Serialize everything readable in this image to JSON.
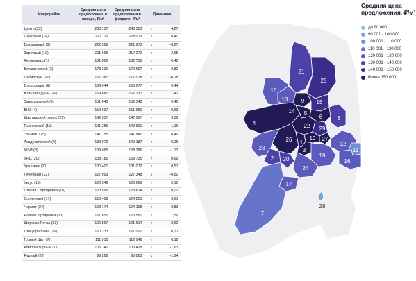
{
  "table": {
    "headers": [
      "Микрорайон",
      "Средняя цена предложения в январе, ₽/м²",
      "Средняя цена предложения в феврале, ₽/м²",
      "Динамика"
    ],
    "rows": [
      [
        "Центр (22)",
        "238 137",
        "248 303",
        "↑",
        "4,27"
      ],
      [
        "Парковый (14)",
        "227 112",
        "228 023",
        "↑",
        "0,40"
      ],
      [
        "Вокзальный (5)",
        "222 568",
        "221 973",
        "↓",
        "-0,27"
      ],
      [
        "Заречный (10)",
        "211 666",
        "217 270",
        "↑",
        "2,65"
      ],
      [
        "Автовокзал (1)",
        "181 860",
        "182 736",
        "↑",
        "0,48"
      ],
      [
        "Ботанический (3)",
        "178 231",
        "179 697",
        "↑",
        "0,82"
      ],
      [
        "Сибирский (27)",
        "171 387",
        "171 078",
        "↓",
        "-0,18"
      ],
      [
        "Втузгородок (6)",
        "164 944",
        "165 677",
        "↑",
        "0,44"
      ],
      [
        "Юго-Западный (26)",
        "159 887",
        "162 237",
        "↑",
        "1,47"
      ],
      [
        "Завокзальный (9)",
        "151 645",
        "152 342",
        "↑",
        "0,46"
      ],
      [
        "ВИЗ (4)",
        "150 697",
        "151 650",
        "↑",
        "0,63"
      ],
      [
        "Шарташский рынок (29)",
        "142 657",
        "147 067",
        "↑",
        "3,09"
      ],
      [
        "Пионерский (15)",
        "141 256",
        "142 901",
        "↑",
        "1,16"
      ],
      [
        "Эльмаш (25)",
        "141 155",
        "141 841",
        "↑",
        "0,49"
      ],
      [
        "Академический (2)",
        "139 970",
        "140 187",
        "↑",
        "0,16"
      ],
      [
        "ЖБИ (8)",
        "139 865",
        "138 286",
        "↓",
        "-1,13"
      ],
      [
        "УНЦ (20)",
        "138 780",
        "139 735",
        "↑",
        "0,69"
      ],
      [
        "Уралмаш (21)",
        "130 401",
        "131 072",
        "↑",
        "0,51"
      ],
      [
        "Лечебный (12)",
        "127 993",
        "127 348",
        "↓",
        "-0,50"
      ],
      [
        "Уктус (19)",
        "126 549",
        "126 669",
        "↑",
        "0,10"
      ],
      [
        "Старая Сортировка (18)",
        "123 596",
        "123 624",
        "↑",
        "0,02"
      ],
      [
        "Солнечный (17)",
        "123 499",
        "124 253",
        "↑",
        "0,61"
      ],
      [
        "Чермет (24)",
        "123 174",
        "124 198",
        "↑",
        "0,83"
      ],
      [
        "Новая Сортировка (13)",
        "121 652",
        "123 587",
        "↑",
        "1,59"
      ],
      [
        "Широкая Речка (23)",
        "120 867",
        "121 614",
        "↑",
        "0,62"
      ],
      [
        "Птицефабрика (16)",
        "120 233",
        "121 090",
        "↑",
        "0,71"
      ],
      [
        "Горный Щит (7)",
        "111 910",
        "112 046",
        "↑",
        "0,12"
      ],
      [
        "Компрессорный (11)",
        "105 140",
        "103 428",
        "↓",
        "-1,63"
      ],
      [
        "Рудный (28)",
        "96 262",
        "95 063",
        "↓",
        "-1,24"
      ]
    ]
  },
  "legend": {
    "title": [
      "Средняя цена",
      "предложения, ₽/м²"
    ],
    "items": [
      {
        "label": "до 90 000",
        "color": "#8cc6ea"
      },
      {
        "label": "90 001 - 100 000",
        "color": "#7aa8dc"
      },
      {
        "label": "100 001 - 110 000",
        "color": "#6f8fd3"
      },
      {
        "label": "110 001 - 120 000",
        "color": "#6675c9"
      },
      {
        "label": "120 001 - 130 000",
        "color": "#5a5bbb"
      },
      {
        "label": "130 001 - 140 000",
        "color": "#4b41a6"
      },
      {
        "label": "140 001 - 150 000",
        "color": "#3b2d8b"
      },
      {
        "label": "более 150 000",
        "color": "#221a55"
      }
    ]
  },
  "districts": [
    {
      "num": "1",
      "name": "Автовокзал",
      "color": "#221a55"
    },
    {
      "num": "2",
      "name": "Академический",
      "color": "#4b41a6"
    },
    {
      "num": "3",
      "name": "Ботанический",
      "color": "#221a55"
    },
    {
      "num": "4",
      "name": "ВИЗ",
      "color": "#221a55"
    },
    {
      "num": "5",
      "name": "Вокзальный",
      "color": "#221a55"
    },
    {
      "num": "6",
      "name": "Втузгородок",
      "color": "#221a55"
    },
    {
      "num": "7",
      "name": "Горный Щит",
      "color": "#6675c9"
    },
    {
      "num": "8",
      "name": "ЖБИ",
      "color": "#4b41a6"
    },
    {
      "num": "9",
      "name": "Завокзальный",
      "color": "#221a55"
    },
    {
      "num": "10",
      "name": "Заречный",
      "color": "#221a55"
    },
    {
      "num": "11",
      "name": "Компрессорный",
      "color": "#6f8fd3"
    },
    {
      "num": "12",
      "name": "Лечебный",
      "color": "#5a5bbb"
    },
    {
      "num": "13",
      "name": "Новая Сортировка",
      "color": "#5a5bbb"
    },
    {
      "num": "14",
      "name": "Парковый",
      "color": "#221a55"
    },
    {
      "num": "15",
      "name": "Пионерский",
      "color": "#3b2d8b"
    },
    {
      "num": "16",
      "name": "Птицефабрика",
      "color": "#5a5bbb"
    },
    {
      "num": "17",
      "name": "Солнечный",
      "color": "#5a5bbb"
    },
    {
      "num": "18",
      "name": "Старая Сортировка",
      "color": "#5a5bbb"
    },
    {
      "num": "19",
      "name": "Уктус",
      "color": "#5a5bbb"
    },
    {
      "num": "20",
      "name": "УНЦ",
      "color": "#4b41a6"
    },
    {
      "num": "21",
      "name": "Уралмаш",
      "color": "#4b41a6"
    },
    {
      "num": "22",
      "name": "Центр",
      "color": "#221a55"
    },
    {
      "num": "23",
      "name": "Широкая Речка",
      "color": "#5a5bbb"
    },
    {
      "num": "24",
      "name": "Чермет",
      "color": "#5a5bbb"
    },
    {
      "num": "25",
      "name": "Эльмаш",
      "color": "#3b2d8b"
    },
    {
      "num": "26",
      "name": "Юго-Западный",
      "color": "#221a55"
    },
    {
      "num": "27",
      "name": "Сибирский",
      "color": "#221a55"
    },
    {
      "num": "28",
      "name": "Рудный",
      "color": "#7aa8dc"
    },
    {
      "num": "29",
      "name": "Шарташский рынок",
      "color": "#3b2d8b"
    }
  ]
}
